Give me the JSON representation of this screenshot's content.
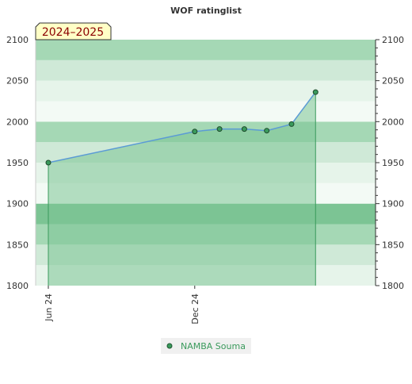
{
  "chart_data": {
    "type": "area",
    "title": "WOF ratinglist",
    "period_label": "2024–2025",
    "ylim": [
      1800,
      2100
    ],
    "y_ticks": [
      1800,
      1850,
      1900,
      1950,
      2000,
      2050,
      2100
    ],
    "x_range": [
      "2024-06-01",
      "2025-07-15"
    ],
    "x_tick_labels": [
      {
        "label": "Jun 24",
        "date": "2024-06-01"
      },
      {
        "label": "Dec 24",
        "date": "2024-12-01"
      }
    ],
    "series": [
      {
        "name": "NAMBA Souma",
        "x": [
          "2024-06-01",
          "2024-12-01",
          "2025-01-01",
          "2025-02-01",
          "2025-03-01",
          "2025-04-01",
          "2025-05-01"
        ],
        "values": [
          1950,
          1988,
          1991,
          1991,
          1989,
          1997,
          2036
        ]
      }
    ],
    "grid": true,
    "legend_position": "bottom-center",
    "colors": {
      "band_dark": "#7cc494",
      "band_mid": "#a5d8b5",
      "band_light": "#cfe9d7",
      "band_lighter": "#e6f4ea",
      "area_fill": "#7cc494",
      "line": "#5b9bd5",
      "marker": "#3a9a5c",
      "legend_text": "#3a9a5c",
      "period_bg": "#ffffc6",
      "period_text": "#8b0000"
    }
  }
}
